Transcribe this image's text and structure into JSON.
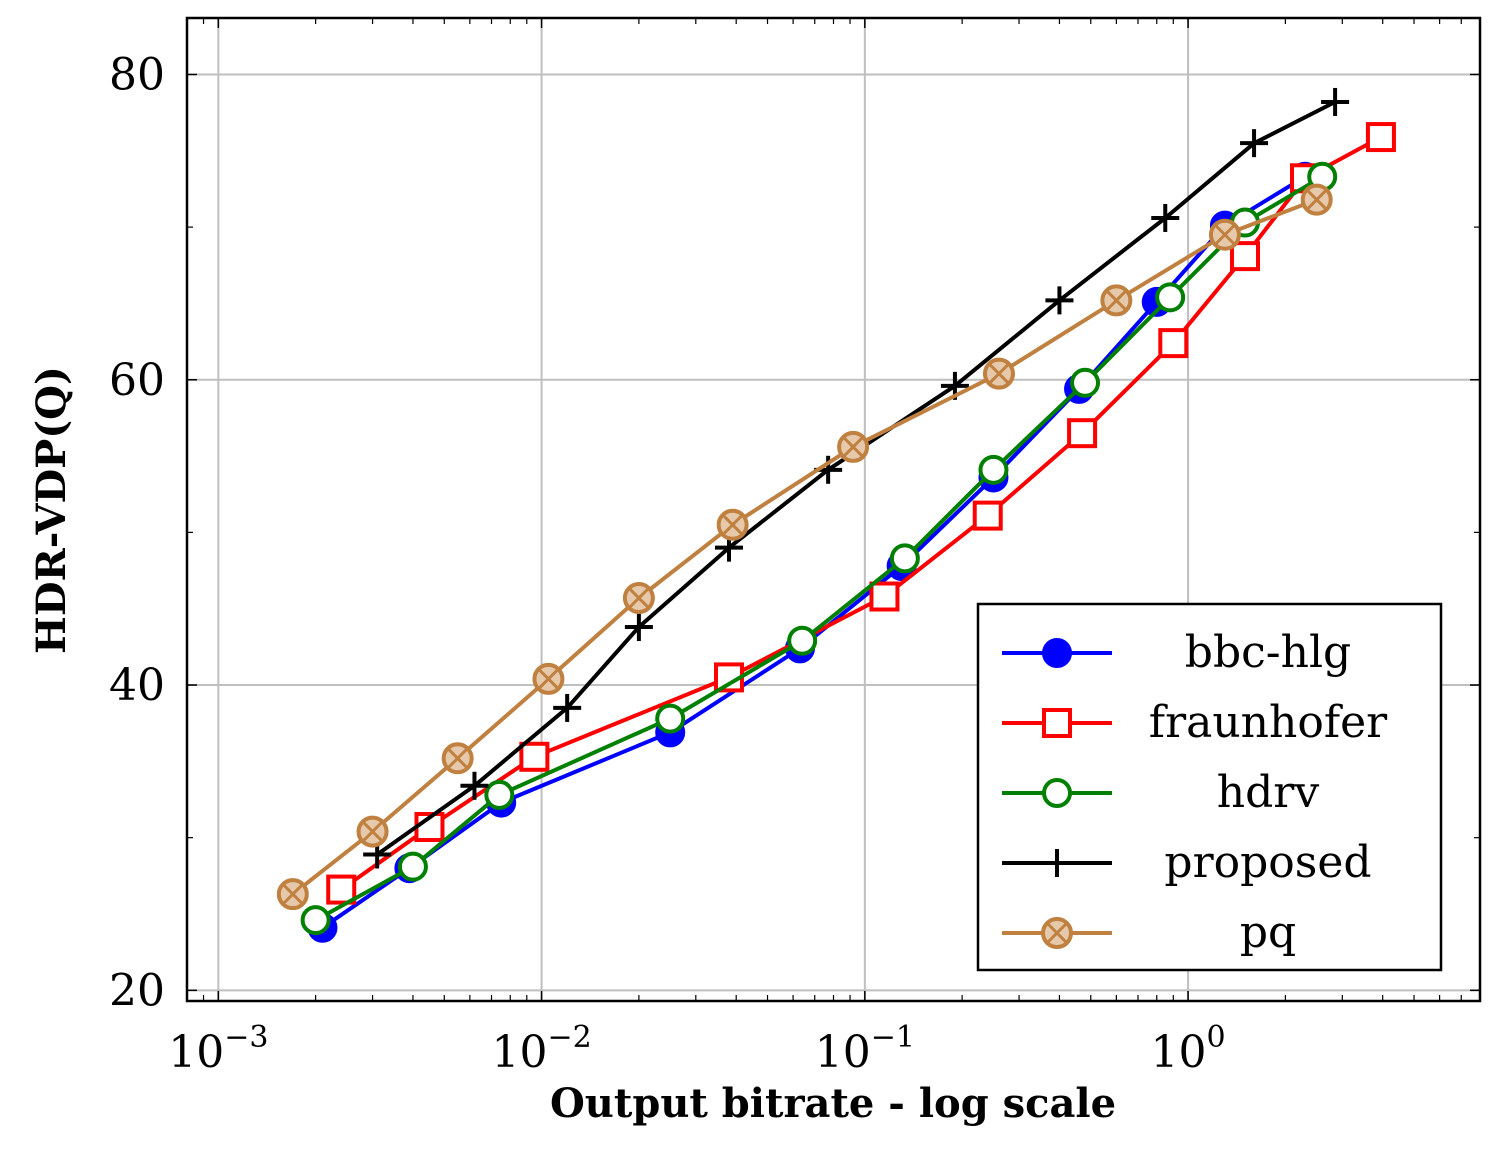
{
  "chart_data": {
    "type": "line",
    "xscale": "log",
    "xlim": [
      0.0008,
      8
    ],
    "ylim": [
      19.3,
      83.7
    ],
    "grid": true,
    "xlabel": "Output bitrate - log scale",
    "ylabel": "HDR-VDP(Q)",
    "yticks": [
      20,
      40,
      60,
      80
    ],
    "ytick_labels": [
      "20",
      "40",
      "60",
      "80"
    ],
    "xticks": [
      0.001,
      0.01,
      0.1,
      1
    ],
    "xtick_labels": [
      {
        "base": "10",
        "exp": "−3"
      },
      {
        "base": "10",
        "exp": "−2"
      },
      {
        "base": "10",
        "exp": "−1"
      },
      {
        "base": "10",
        "exp": "0"
      }
    ],
    "legend_position": "bottom-right",
    "series": [
      {
        "name": "bbc-hlg",
        "color": "#0000ff",
        "marker": "filled-circle",
        "x": [
          0.0021,
          0.0039,
          0.0075,
          0.025,
          0.063,
          0.13,
          0.25,
          0.46,
          0.8,
          1.3,
          2.3
        ],
        "y": [
          24.1,
          28.0,
          32.3,
          36.9,
          42.4,
          47.8,
          53.6,
          59.4,
          65.1,
          70.1,
          73.3
        ]
      },
      {
        "name": "fraunhofer",
        "color": "#ff0000",
        "marker": "open-square",
        "x": [
          0.0024,
          0.0045,
          0.0095,
          0.038,
          0.115,
          0.24,
          0.47,
          0.9,
          1.5,
          2.3,
          3.95
        ],
        "y": [
          26.6,
          30.7,
          35.3,
          40.5,
          45.8,
          51.1,
          56.5,
          62.4,
          68.1,
          73.2,
          75.9
        ]
      },
      {
        "name": "hdrv",
        "color": "#008000",
        "marker": "open-circle",
        "x": [
          0.002,
          0.004,
          0.0074,
          0.025,
          0.064,
          0.133,
          0.25,
          0.48,
          0.88,
          1.5,
          2.6
        ],
        "y": [
          24.6,
          28.1,
          32.8,
          37.8,
          42.9,
          48.3,
          54.1,
          59.8,
          65.4,
          70.3,
          73.3
        ]
      },
      {
        "name": "proposed",
        "color": "#000000",
        "marker": "plus",
        "x": [
          0.0031,
          0.0062,
          0.012,
          0.02,
          0.038,
          0.077,
          0.19,
          0.4,
          0.85,
          1.6,
          2.85
        ],
        "y": [
          28.9,
          33.4,
          38.5,
          43.8,
          49.0,
          54.1,
          59.6,
          65.2,
          70.6,
          75.5,
          78.2
        ]
      },
      {
        "name": "pq",
        "color": "#bf8040",
        "marker": "crossed-circle",
        "x": [
          0.0017,
          0.003,
          0.0055,
          0.0105,
          0.02,
          0.039,
          0.092,
          0.26,
          0.6,
          1.3,
          2.5
        ],
        "y": [
          26.3,
          30.4,
          35.2,
          40.4,
          45.7,
          50.5,
          55.6,
          60.4,
          65.2,
          69.5,
          71.8
        ]
      }
    ]
  }
}
